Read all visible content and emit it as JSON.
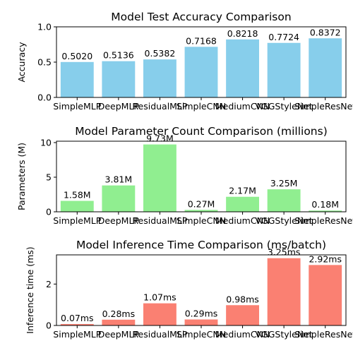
{
  "chart_data": [
    {
      "type": "bar",
      "title": "Model Test Accuracy Comparison",
      "xlabel": "",
      "ylabel": "Accuracy",
      "categories": [
        "SimpleMLP",
        "DeepMLP",
        "ResidualMLP",
        "SimpleCNN",
        "MediumCNN",
        "VGGStyleNet",
        "SimpleResNet"
      ],
      "values": [
        0.502,
        0.5136,
        0.5382,
        0.7168,
        0.8218,
        0.7724,
        0.8372
      ],
      "data_labels": [
        "0.5020",
        "0.5136",
        "0.5382",
        "0.7168",
        "0.8218",
        "0.7724",
        "0.8372"
      ],
      "ylim": [
        0,
        1.0
      ],
      "yticks": [
        0,
        0.5,
        1.0
      ],
      "ytick_labels": [
        "0.0",
        "0.5",
        "1.0"
      ],
      "bar_color": "#87ceeb",
      "grid": false
    },
    {
      "type": "bar",
      "title": "Model Parameter Count Comparison (millions)",
      "xlabel": "",
      "ylabel": "Parameters (M)",
      "categories": [
        "SimpleMLP",
        "DeepMLP",
        "ResidualMLP",
        "SimpleCNN",
        "MediumCNN",
        "VGGStyleNet",
        "SimpleResNet"
      ],
      "values": [
        1.58,
        3.81,
        9.73,
        0.27,
        2.17,
        3.25,
        0.18
      ],
      "data_labels": [
        "1.58M",
        "3.81M",
        "9.73M",
        "0.27M",
        "2.17M",
        "3.25M",
        "0.18M"
      ],
      "ylim": [
        0,
        10.2
      ],
      "yticks": [
        0,
        5,
        10
      ],
      "ytick_labels": [
        "0",
        "5",
        "10"
      ],
      "bar_color": "#90ee90",
      "grid": false
    },
    {
      "type": "bar",
      "title": "Model Inference Time Comparison (ms/batch)",
      "xlabel": "",
      "ylabel": "Inference time (ms)",
      "categories": [
        "SimpleMLP",
        "DeepMLP",
        "ResidualMLP",
        "SimpleCNN",
        "MediumCNN",
        "VGGStyleNet",
        "SimpleResNet"
      ],
      "values": [
        0.07,
        0.28,
        1.07,
        0.29,
        0.98,
        3.25,
        2.92
      ],
      "data_labels": [
        "0.07ms",
        "0.28ms",
        "1.07ms",
        "0.29ms",
        "0.98ms",
        "3.25ms",
        "2.92ms"
      ],
      "ylim": [
        0,
        3.41
      ],
      "yticks": [
        0,
        2
      ],
      "ytick_labels": [
        "0",
        "2"
      ],
      "bar_color": "#fa8072",
      "grid": false
    }
  ]
}
